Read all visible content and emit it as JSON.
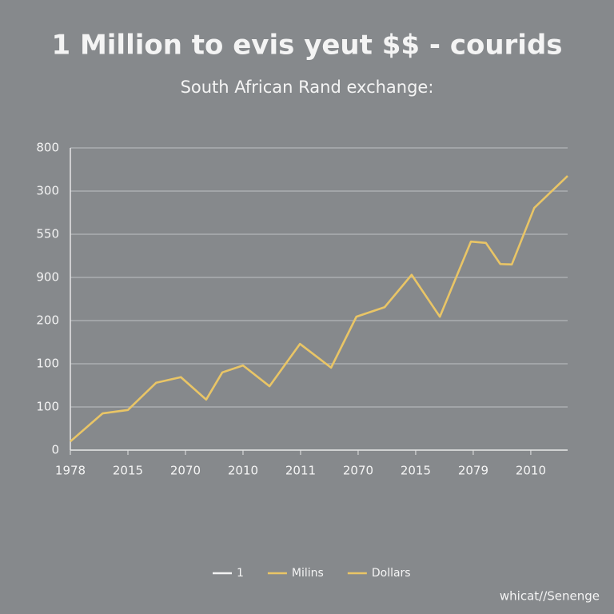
{
  "chart_data": {
    "type": "line",
    "title": "1 Million to evis yeut $$ - courids",
    "subtitle": "South African Rand exchange:",
    "x": [
      0,
      0.56,
      1.0,
      1.49,
      1.92,
      2.36,
      2.64,
      3.0,
      3.46,
      3.99,
      4.53,
      4.97,
      5.46,
      5.93,
      6.42,
      6.96,
      7.22,
      7.47,
      7.67,
      8.06,
      8.64
    ],
    "series": [
      {
        "color": "#e9c566",
        "values": [
          20,
          85,
          93,
          156,
          169,
          117,
          180,
          196,
          148,
          246,
          191,
          309,
          331,
          406,
          309,
          483,
          480,
          431,
          430,
          561,
          635
        ]
      }
    ],
    "xlim": [
      0,
      8.64
    ],
    "xticks": [
      {
        "value": 0,
        "label": "1978"
      },
      {
        "value": 1,
        "label": "2015"
      },
      {
        "value": 2,
        "label": "2070"
      },
      {
        "value": 3,
        "label": "2010"
      },
      {
        "value": 4,
        "label": "2011"
      },
      {
        "value": 5,
        "label": "2070"
      },
      {
        "value": 6,
        "label": "2015"
      },
      {
        "value": 7,
        "label": "2079"
      },
      {
        "value": 8,
        "label": "2010"
      }
    ],
    "ylim": [
      0,
      700
    ],
    "yticks": [
      0,
      100,
      {
        "value": 200,
        "label": "100"
      },
      {
        "value": 300,
        "label": "200"
      },
      {
        "value": 400,
        "label": "900"
      },
      {
        "value": 500,
        "label": "550"
      },
      {
        "value": 600,
        "label": "300"
      },
      {
        "value": 700,
        "label": "800"
      }
    ],
    "grid": true,
    "legend": [
      {
        "name": "1",
        "color": "#f2f2f2"
      },
      {
        "name": "Milins",
        "color": "#e9c566"
      },
      {
        "name": "Dollars",
        "color": "#e9c566"
      }
    ],
    "footer": "whicat//Senenge"
  }
}
